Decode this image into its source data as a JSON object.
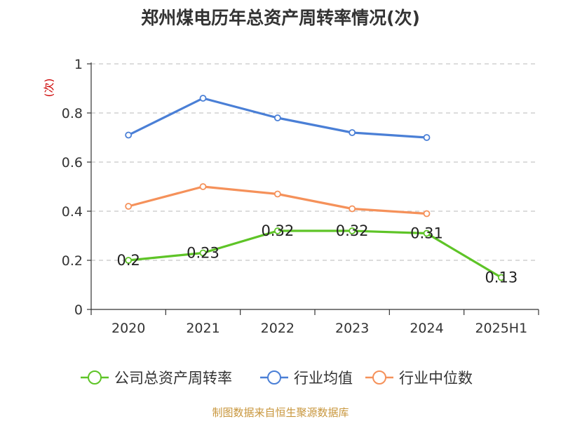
{
  "chart_data": {
    "type": "line",
    "title": "郑州煤电历年总资产周转率情况(次)",
    "ylabel": "(次)",
    "categories": [
      "2020",
      "2021",
      "2022",
      "2023",
      "2024",
      "2025H1"
    ],
    "yticks": [
      "0",
      "0.2",
      "0.4",
      "0.6",
      "0.8",
      "1"
    ],
    "ylim": [
      0,
      1
    ],
    "grid": true,
    "legend_position": "bottom",
    "series": [
      {
        "name": "公司总资产周转率",
        "color": "#5ec427",
        "values": [
          0.2,
          0.23,
          0.32,
          0.32,
          0.31,
          0.13
        ],
        "labels": [
          "0.2",
          "0.23",
          "0.32",
          "0.32",
          "0.31",
          "0.13"
        ]
      },
      {
        "name": "行业均值",
        "color": "#4a7fd6",
        "values": [
          0.71,
          0.86,
          0.78,
          0.72,
          0.7,
          null
        ]
      },
      {
        "name": "行业中位数",
        "color": "#f5915a",
        "values": [
          0.42,
          0.5,
          0.47,
          0.41,
          0.39,
          null
        ]
      }
    ]
  },
  "source": "制图数据来自恒生聚源数据库"
}
